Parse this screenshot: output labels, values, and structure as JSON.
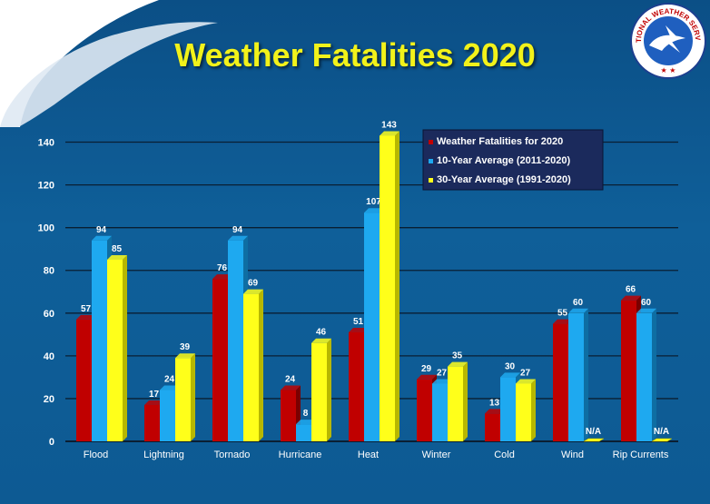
{
  "title": "Weather Fatalities 2020",
  "logo": {
    "text": "NATIONAL WEATHER SERVICE",
    "icon": "nws-logo-icon"
  },
  "colors": {
    "series_2020": "#c00000",
    "series_10yr": "#1ea9f0",
    "series_30yr": "#ffff1a",
    "background": "#0d5a93"
  },
  "chart_data": {
    "type": "bar",
    "title": "Weather Fatalities 2020",
    "xlabel": "",
    "ylabel": "",
    "categories": [
      "Flood",
      "Lightning",
      "Tornado",
      "Hurricane",
      "Heat",
      "Winter",
      "Cold",
      "Wind",
      "Rip Currents"
    ],
    "series": [
      {
        "name": "Weather Fatalities for 2020",
        "values": [
          57,
          17,
          76,
          24,
          51,
          29,
          13,
          55,
          66
        ]
      },
      {
        "name": "10-Year Average (2011-2020)",
        "values": [
          94,
          24,
          94,
          8,
          107,
          27,
          30,
          60,
          60
        ]
      },
      {
        "name": "30-Year Average (1991-2020)",
        "values": [
          85,
          39,
          69,
          46,
          143,
          35,
          27,
          null,
          null
        ],
        "labels": [
          "85",
          "39",
          "69",
          "46",
          "143",
          "35",
          "27",
          "N/A",
          "N/A"
        ]
      }
    ],
    "ylim": [
      0,
      150
    ],
    "yticks": [
      0,
      20,
      40,
      60,
      80,
      100,
      120,
      140
    ],
    "grid": true,
    "legend": "top-right"
  }
}
